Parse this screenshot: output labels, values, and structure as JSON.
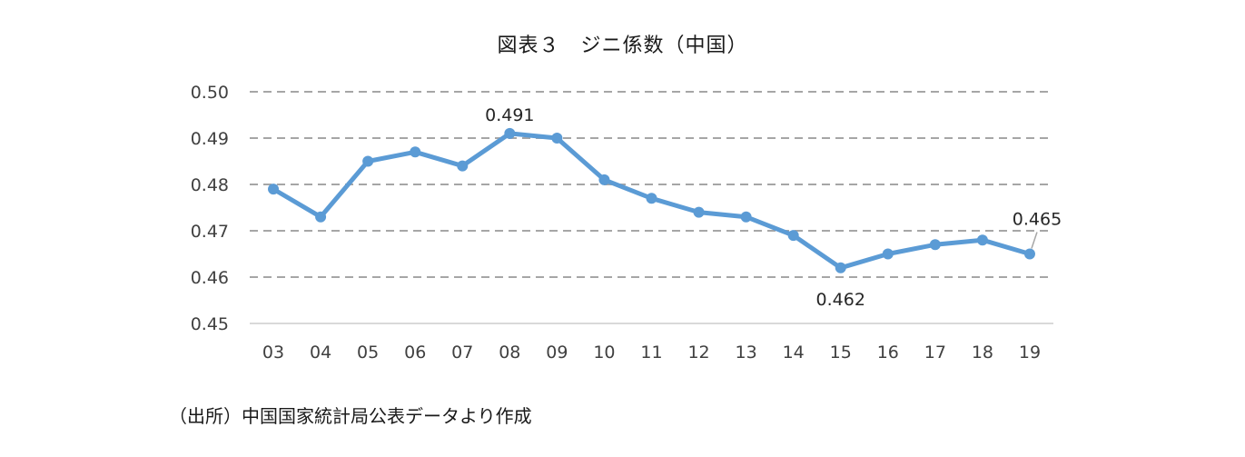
{
  "chart_data": {
    "type": "line",
    "title": "図表３　ジニ係数（中国）",
    "xlabel": "",
    "ylabel": "",
    "categories": [
      "03",
      "04",
      "05",
      "06",
      "07",
      "08",
      "09",
      "10",
      "11",
      "12",
      "13",
      "14",
      "15",
      "16",
      "17",
      "18",
      "19"
    ],
    "series": [
      {
        "name": "ジニ係数",
        "color": "#5B9BD5",
        "values": [
          0.479,
          0.473,
          0.485,
          0.487,
          0.484,
          0.491,
          0.49,
          0.481,
          0.477,
          0.474,
          0.473,
          0.469,
          0.462,
          0.465,
          0.467,
          0.468,
          0.465
        ]
      }
    ],
    "ylim": [
      0.45,
      0.5
    ],
    "yticks": [
      "0.50",
      "0.49",
      "0.48",
      "0.47",
      "0.46",
      "0.45"
    ],
    "grid": "horizontal dashed",
    "legend": "none",
    "annotations": [
      {
        "category": "08",
        "text": "0.491",
        "position": "above"
      },
      {
        "category": "15",
        "text": "0.462",
        "position": "below"
      },
      {
        "category": "19",
        "text": "0.465",
        "position": "above-right with leader line"
      }
    ],
    "source": "（出所）中国国家統計局公表データより作成"
  },
  "colors": {
    "line": "#5B9BD5",
    "grid": "#A6A6A6",
    "axis": "#D9D9D9",
    "text": "#404040"
  }
}
